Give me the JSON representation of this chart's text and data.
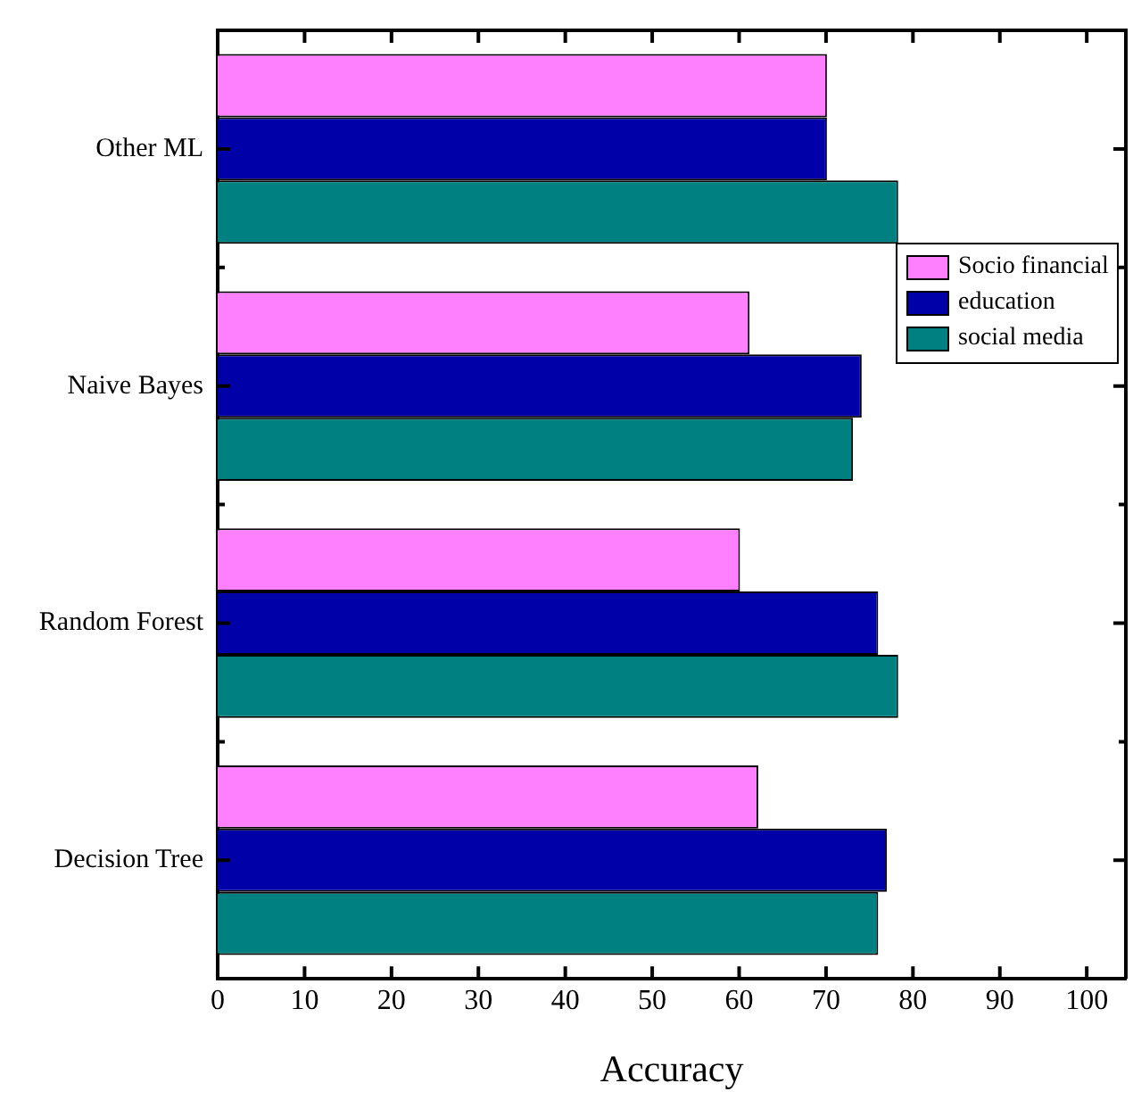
{
  "chart_data": {
    "type": "bar",
    "orientation": "horizontal",
    "xlabel": "Accuracy",
    "categories": [
      "Other ML",
      "Naive Bayes",
      "Random Forest",
      "Decision Tree"
    ],
    "series": [
      {
        "name": "Socio financial",
        "color": "#ff80ff",
        "values": [
          70.1,
          61.2,
          60.1,
          62.2
        ]
      },
      {
        "name": "education",
        "color": "#0000a8",
        "values": [
          70.1,
          74.1,
          76.0,
          77.0
        ]
      },
      {
        "name": "social media",
        "color": "#008080",
        "values": [
          78.3,
          73.1,
          78.3,
          76.0
        ]
      }
    ],
    "xlim": [
      0,
      104.5
    ],
    "xticks": [
      0,
      10,
      20,
      30,
      40,
      50,
      60,
      70,
      80,
      90,
      100
    ],
    "grid": false,
    "legend": "right"
  }
}
